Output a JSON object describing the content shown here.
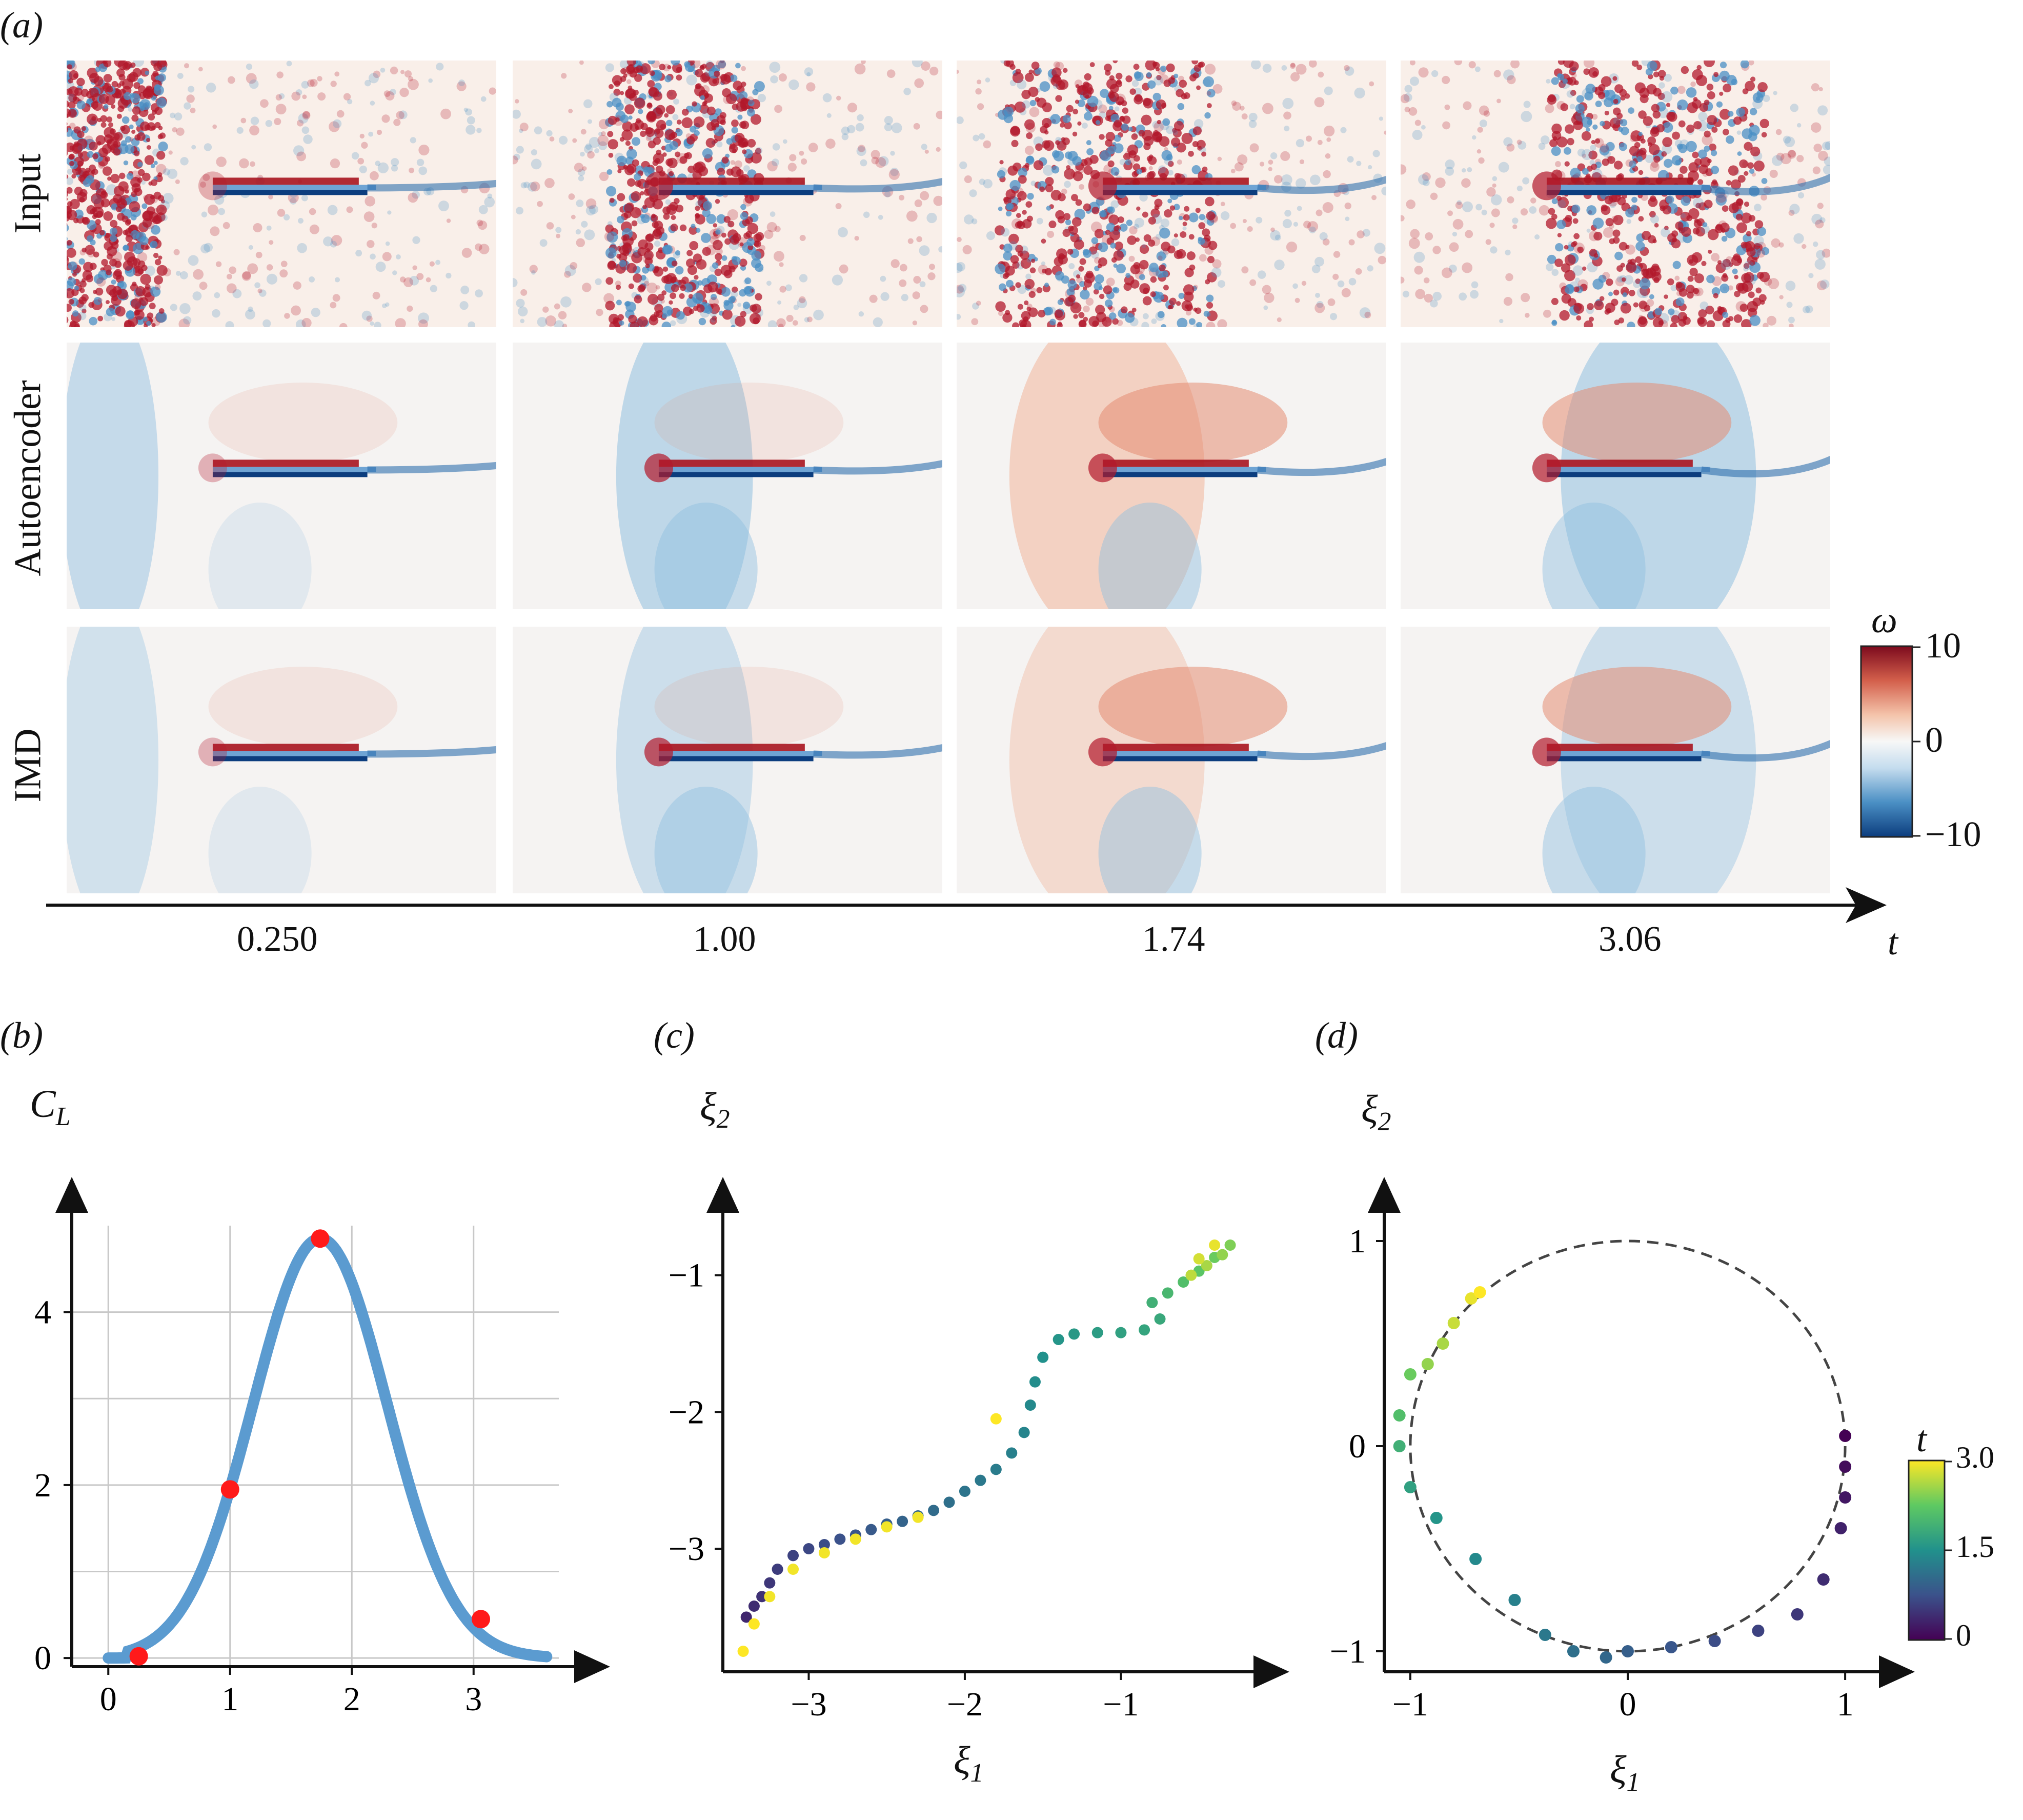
{
  "panel_a": {
    "label": "(a)",
    "rows": [
      "Input",
      "Autoencoder",
      "IMD"
    ],
    "times": [
      "0.250",
      "1.00",
      "1.74",
      "3.06"
    ],
    "time_axis_label": "t",
    "colorbar": {
      "symbol": "ω",
      "ticks": [
        "10",
        "0",
        "−10"
      ],
      "max": 10,
      "min": -10
    },
    "colormap": [
      "#0c3d7e",
      "#4a8fc4",
      "#c4dcee",
      "#f7f7f7",
      "#f4c3aa",
      "#d35f4b",
      "#7c0a1d"
    ]
  },
  "panel_b": {
    "label": "(b)",
    "ylabel_main": "C",
    "ylabel_sub": "L",
    "xlabel": "t",
    "xticks": [
      "0",
      "1",
      "2",
      "3"
    ],
    "yticks": [
      "0",
      "2",
      "4"
    ],
    "line_color": "#5b9bd0",
    "marker_color": "#ff1a1a"
  },
  "panel_c": {
    "label": "(c)",
    "xlabel_main": "ξ",
    "xlabel_sub": "1",
    "ylabel_main": "ξ",
    "ylabel_sub": "2",
    "xticks": [
      "−3",
      "−2",
      "−1"
    ],
    "yticks": [
      "−1",
      "−2",
      "−3"
    ]
  },
  "panel_d": {
    "label": "(d)",
    "xlabel_main": "ξ",
    "xlabel_sub": "1",
    "ylabel_main": "ξ",
    "ylabel_sub": "2",
    "xticks": [
      "−1",
      "0",
      "1"
    ],
    "yticks": [
      "1",
      "0",
      "−1"
    ],
    "colorbar": {
      "symbol": "t",
      "ticks": [
        "3.0",
        "1.5",
        "0"
      ]
    }
  },
  "chart_data": [
    {
      "type": "line",
      "panel": "(b)",
      "xlabel": "t",
      "ylabel": "C_L",
      "xlim": [
        -0.3,
        3.7
      ],
      "ylim": [
        -0.1,
        5.0
      ],
      "grid": true,
      "series": [
        {
          "x": [
            0,
            0.25,
            0.5,
            0.75,
            1.0,
            1.25,
            1.5,
            1.74,
            2.0,
            2.25,
            2.5,
            2.75,
            3.0,
            3.06,
            3.25,
            3.5,
            3.6
          ],
          "y": [
            0,
            0.02,
            0.3,
            1.0,
            1.95,
            3.1,
            4.2,
            4.85,
            4.5,
            3.6,
            2.5,
            1.5,
            0.6,
            0.45,
            0.2,
            0.04,
            0
          ]
        }
      ],
      "markers": {
        "x": [
          0.25,
          1.0,
          1.74,
          3.06
        ],
        "y": [
          0.02,
          1.95,
          4.85,
          0.45
        ]
      }
    },
    {
      "type": "scatter",
      "panel": "(c)",
      "xlabel": "ξ1",
      "ylabel": "ξ2",
      "xlim": [
        -3.55,
        -0.2
      ],
      "ylim": [
        -3.9,
        -0.6
      ],
      "color_by": "t",
      "points": [
        [
          -3.4,
          -3.5,
          0.35
        ],
        [
          -3.35,
          -3.42,
          0.4
        ],
        [
          -3.3,
          -3.35,
          0.45
        ],
        [
          -3.25,
          -3.25,
          0.5
        ],
        [
          -3.2,
          -3.15,
          0.55
        ],
        [
          -3.1,
          -3.05,
          0.6
        ],
        [
          -3.0,
          -3.0,
          0.65
        ],
        [
          -2.9,
          -2.97,
          0.7
        ],
        [
          -2.8,
          -2.93,
          0.75
        ],
        [
          -2.7,
          -2.9,
          0.8
        ],
        [
          -2.6,
          -2.86,
          0.85
        ],
        [
          -2.5,
          -2.82,
          0.9
        ],
        [
          -2.4,
          -2.8,
          0.95
        ],
        [
          -2.3,
          -2.76,
          1.0
        ],
        [
          -2.2,
          -2.72,
          1.05
        ],
        [
          -2.1,
          -2.66,
          1.1
        ],
        [
          -2.0,
          -2.58,
          1.15
        ],
        [
          -1.9,
          -2.5,
          1.2
        ],
        [
          -1.8,
          -2.42,
          1.25
        ],
        [
          -1.7,
          -2.3,
          1.3
        ],
        [
          -1.62,
          -2.15,
          1.35
        ],
        [
          -1.58,
          -1.95,
          1.4
        ],
        [
          -1.55,
          -1.78,
          1.45
        ],
        [
          -1.5,
          -1.6,
          1.5
        ],
        [
          -1.4,
          -1.47,
          1.55
        ],
        [
          -1.3,
          -1.43,
          1.6
        ],
        [
          -1.15,
          -1.42,
          1.65
        ],
        [
          -1.0,
          -1.42,
          1.7
        ],
        [
          -0.85,
          -1.4,
          1.75
        ],
        [
          -0.75,
          -1.32,
          1.8
        ],
        [
          -0.8,
          -1.2,
          1.9
        ],
        [
          -0.7,
          -1.13,
          2.0
        ],
        [
          -0.6,
          -1.05,
          2.1
        ],
        [
          -0.5,
          -0.97,
          2.2
        ],
        [
          -0.4,
          -0.87,
          2.3
        ],
        [
          -0.3,
          -0.78,
          2.4
        ],
        [
          -0.35,
          -0.85,
          2.5
        ],
        [
          -0.45,
          -0.93,
          2.6
        ],
        [
          -0.55,
          -1.0,
          2.7
        ],
        [
          -0.5,
          -0.88,
          2.8
        ],
        [
          -0.4,
          -0.78,
          2.9
        ],
        [
          -1.8,
          -2.05,
          3.0
        ],
        [
          -2.3,
          -2.77,
          2.95
        ],
        [
          -2.5,
          -2.84,
          2.95
        ],
        [
          -2.7,
          -2.93,
          2.95
        ],
        [
          -2.9,
          -3.03,
          2.95
        ],
        [
          -3.1,
          -3.15,
          2.95
        ],
        [
          -3.25,
          -3.35,
          2.95
        ],
        [
          -3.35,
          -3.55,
          3.0
        ],
        [
          -3.42,
          -3.75,
          3.0
        ]
      ]
    },
    {
      "type": "scatter",
      "panel": "(d)",
      "xlabel": "ξ1",
      "ylabel": "ξ2",
      "xlim": [
        -1.12,
        1.12
      ],
      "ylim": [
        -1.1,
        1.1
      ],
      "color_by": "t",
      "reference_curve": "unit circle (dashed)",
      "points": [
        [
          1.0,
          0.05,
          0.0
        ],
        [
          1.0,
          -0.1,
          0.1
        ],
        [
          1.0,
          -0.25,
          0.2
        ],
        [
          0.98,
          -0.4,
          0.3
        ],
        [
          0.9,
          -0.65,
          0.4
        ],
        [
          0.78,
          -0.82,
          0.5
        ],
        [
          0.6,
          -0.9,
          0.6
        ],
        [
          0.4,
          -0.95,
          0.7
        ],
        [
          0.2,
          -0.98,
          0.8
        ],
        [
          0.0,
          -1.0,
          0.9
        ],
        [
          -0.1,
          -1.03,
          1.0
        ],
        [
          -0.25,
          -1.0,
          1.1
        ],
        [
          -0.38,
          -0.92,
          1.2
        ],
        [
          -0.52,
          -0.75,
          1.3
        ],
        [
          -0.7,
          -0.55,
          1.4
        ],
        [
          -0.88,
          -0.35,
          1.55
        ],
        [
          -1.0,
          -0.2,
          1.7
        ],
        [
          -1.05,
          0.0,
          1.9
        ],
        [
          -1.05,
          0.15,
          2.1
        ],
        [
          -1.0,
          0.35,
          2.3
        ],
        [
          -0.92,
          0.4,
          2.5
        ],
        [
          -0.85,
          0.5,
          2.6
        ],
        [
          -0.8,
          0.6,
          2.75
        ],
        [
          -0.72,
          0.72,
          2.9
        ],
        [
          -0.68,
          0.75,
          3.0
        ]
      ]
    }
  ]
}
